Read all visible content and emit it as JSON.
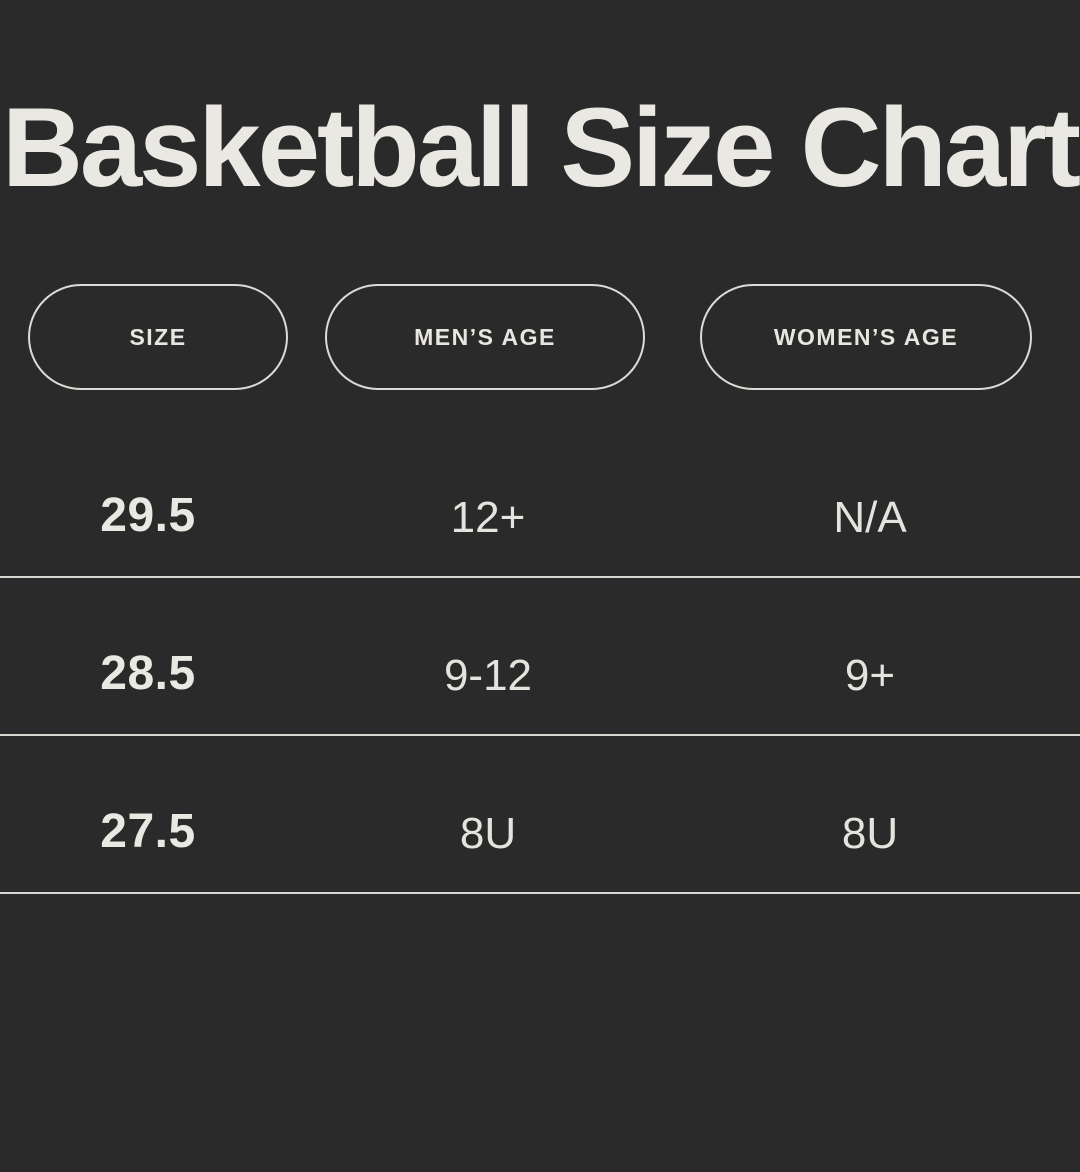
{
  "page": {
    "background_color": "#2B2A2A",
    "title_color": "#EAE8E2",
    "text_color": "#E5E3DD",
    "divider_color": "#D9D7D1",
    "pill_border_color": "#DDDBD5"
  },
  "title": "Basketball Size Chart",
  "table": {
    "columns": [
      {
        "label": "SIZE"
      },
      {
        "label": "MEN’S AGE"
      },
      {
        "label": "WOMEN’S AGE"
      }
    ],
    "rows": [
      {
        "size": "29.5",
        "mens_age": "12+",
        "womens_age": "N/A"
      },
      {
        "size": "28.5",
        "mens_age": "9-12",
        "womens_age": "9+"
      },
      {
        "size": "27.5",
        "mens_age": "8U",
        "womens_age": "8U"
      }
    ]
  },
  "chart_data": {
    "type": "table",
    "title": "Basketball Size Chart",
    "columns": [
      "SIZE",
      "MEN’S AGE",
      "WOMEN’S AGE"
    ],
    "rows": [
      [
        "29.5",
        "12+",
        "N/A"
      ],
      [
        "28.5",
        "9-12",
        "9+"
      ],
      [
        "27.5",
        "8U",
        "8U"
      ]
    ]
  }
}
